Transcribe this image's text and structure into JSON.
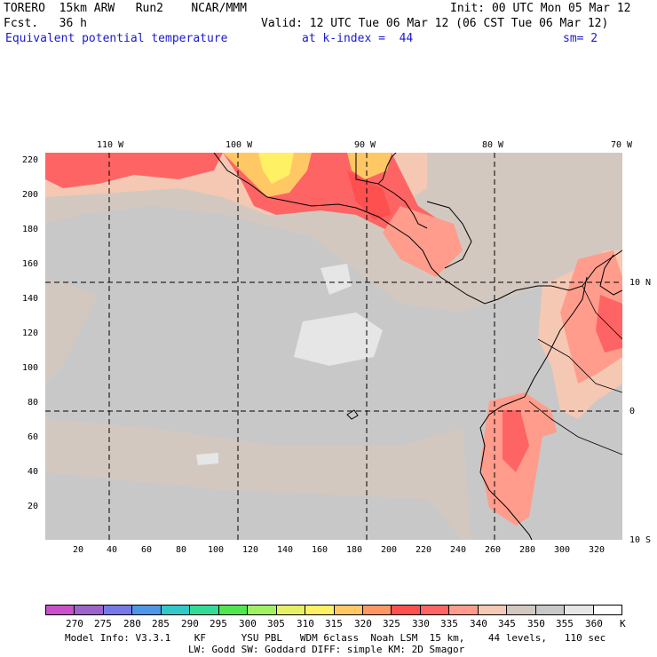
{
  "header": {
    "model": "TORERO  15km ARW   Run2    NCAR/MMM",
    "init": "Init: 00 UTC Mon 05 Mar 12",
    "fcst": "Fcst.   36 h",
    "valid": "Valid: 12 UTC Tue 06 Mar 12 (06 CST Tue 06 Mar 12)",
    "field": "Equivalent potential temperature",
    "level": "at k-index =  44",
    "smooth": "sm= 2"
  },
  "top_lon_labels": [
    "110 W",
    "100 W",
    "90 W",
    "80 W",
    "70 W"
  ],
  "right_lat_labels": [
    "10 N",
    "0",
    "10 S"
  ],
  "y_ticks": [
    "220",
    "200",
    "180",
    "160",
    "140",
    "120",
    "100",
    "80",
    "60",
    "40",
    "20"
  ],
  "x_ticks": [
    "20",
    "40",
    "60",
    "80",
    "100",
    "120",
    "140",
    "160",
    "180",
    "200",
    "220",
    "240",
    "260",
    "280",
    "300",
    "320"
  ],
  "colorbar": {
    "labels": [
      "270",
      "275",
      "280",
      "285",
      "290",
      "295",
      "300",
      "305",
      "310",
      "315",
      "320",
      "325",
      "330",
      "335",
      "340",
      "345",
      "350",
      "355",
      "360",
      "K"
    ],
    "colors": [
      "#c850c8",
      "#9c64c8",
      "#7878e6",
      "#5096e6",
      "#32c8c8",
      "#32dc96",
      "#50e650",
      "#a0f064",
      "#e6f064",
      "#fff064",
      "#ffc864",
      "#ff9664",
      "#ff5050",
      "#ff6464",
      "#ff9c8c",
      "#f5c8b4",
      "#d2c8c0",
      "#c8c8c8",
      "#e6e6e6",
      "#ffffff"
    ]
  },
  "info": {
    "line1": "Model Info: V3.3.1    KF      YSU PBL   WDM 6class  Noah LSM  15 km,    44 levels,   110 sec",
    "line2": "LW: Godd SW: Goddard DIFF: simple KM: 2D Smagor"
  }
}
